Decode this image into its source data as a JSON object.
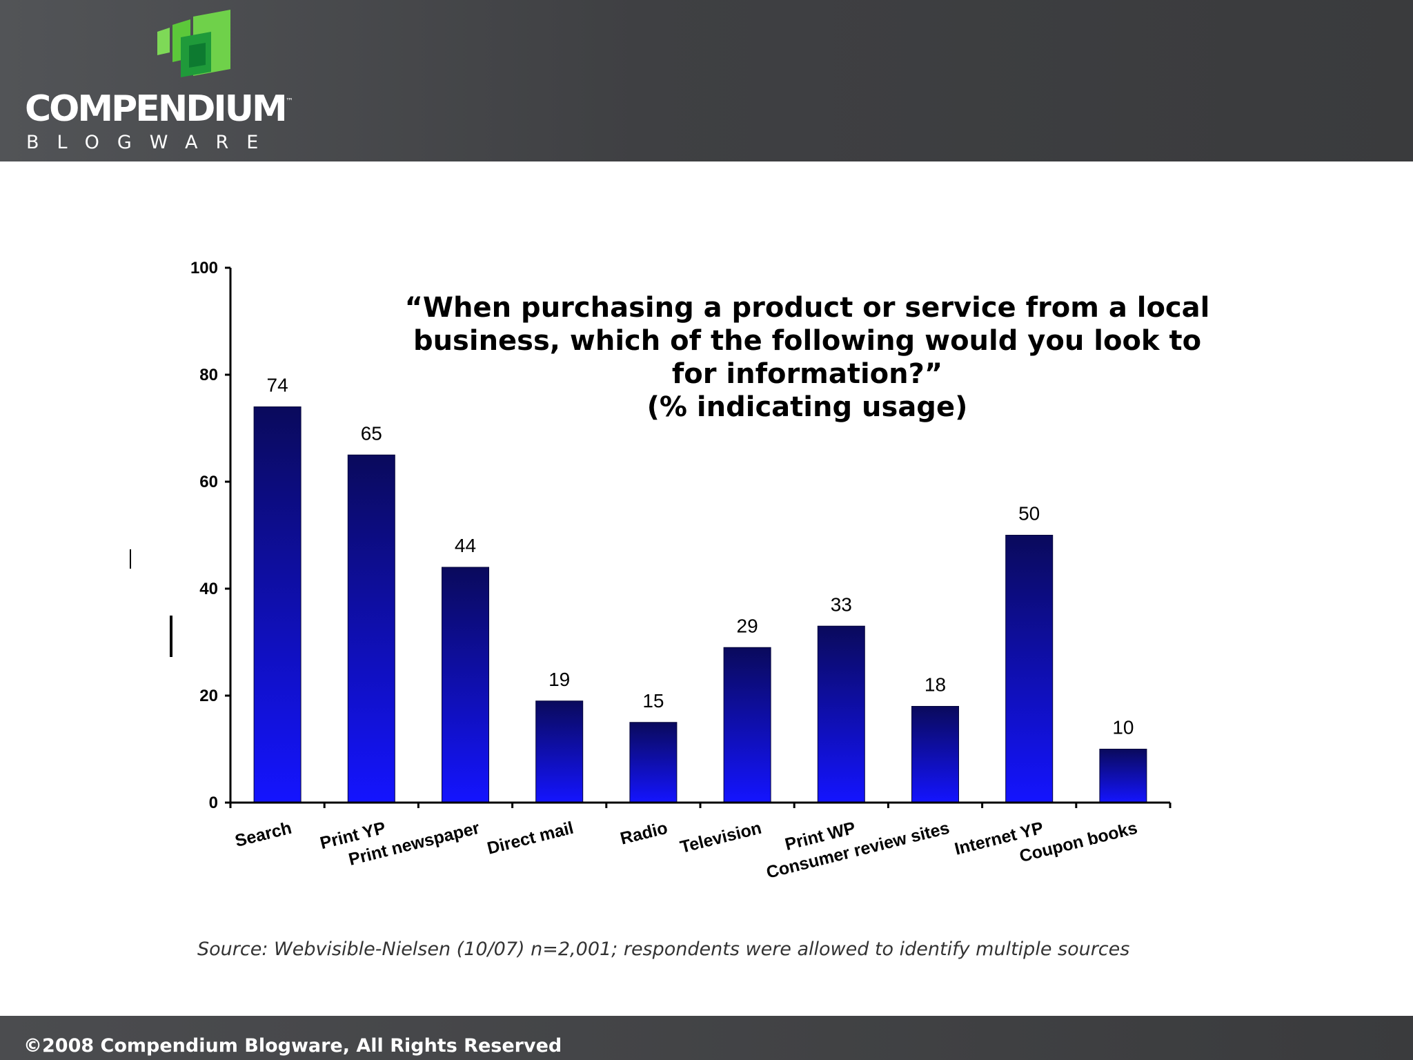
{
  "header": {
    "brand_name": "COMPENDIUM",
    "brand_tm": "™",
    "brand_sub": "BLOGWARE",
    "colors": {
      "bar_top": "#0a0a5c",
      "bar_bottom": "#1010ff",
      "logo_green": "#5cc83a"
    }
  },
  "chart_data": {
    "type": "bar",
    "title": "“When purchasing a product or service from a local business, which of the following would you look to for information?” (% indicating usage)",
    "title_lines": [
      "“When purchasing a product or service from a local",
      "business, which of the following would you look to",
      "for information?”",
      "(% indicating usage)"
    ],
    "categories": [
      "Search",
      "Print YP",
      "Print newspaper",
      "Direct mail",
      "Radio",
      "Television",
      "Print WP",
      "Consumer review sites",
      "Internet YP",
      "Coupon books"
    ],
    "values": [
      74,
      65,
      44,
      19,
      15,
      29,
      33,
      18,
      50,
      10
    ],
    "ylim": [
      0,
      100
    ],
    "yticks": [
      0,
      20,
      40,
      60,
      80,
      100
    ],
    "xlabel": "",
    "ylabel": "",
    "grid": false
  },
  "source_note": "Source: Webvisible-Nielsen (10/07) n=2,001; respondents were allowed to identify multiple sources",
  "footer": {
    "copyright": "©2008 Compendium Blogware, All Rights Reserved"
  }
}
